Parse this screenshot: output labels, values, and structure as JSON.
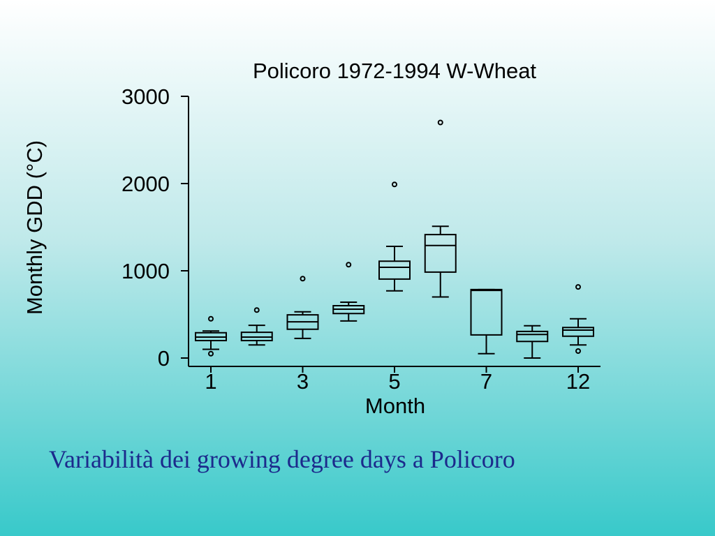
{
  "chart_data": {
    "type": "box",
    "title": "Policoro 1972-1994 W-Wheat",
    "x_label": "Month",
    "y_label": "Monthly GDD (°C)",
    "categories": [
      "1",
      null,
      "3",
      null,
      "5",
      null,
      "7",
      null,
      "12"
    ],
    "boxes": [
      {
        "min": 100,
        "q1": 200,
        "median": 240,
        "q3": 290,
        "max": 310,
        "outliers": [
          450,
          50
        ]
      },
      {
        "min": 150,
        "q1": 200,
        "median": 240,
        "q3": 295,
        "max": 375,
        "outliers": [
          550
        ]
      },
      {
        "min": 225,
        "q1": 330,
        "median": 415,
        "q3": 495,
        "max": 530,
        "outliers": [
          910
        ]
      },
      {
        "min": 425,
        "q1": 510,
        "median": 560,
        "q3": 600,
        "max": 640,
        "outliers": [
          1070
        ]
      },
      {
        "min": 770,
        "q1": 905,
        "median": 1040,
        "q3": 1110,
        "max": 1280,
        "outliers": [
          1990
        ]
      },
      {
        "min": 700,
        "q1": 985,
        "median": 1290,
        "q3": 1415,
        "max": 1510,
        "outliers": [
          2700
        ]
      },
      {
        "min": 50,
        "q1": 265,
        "median": 775,
        "q3": 785,
        "max": 785,
        "outliers": []
      },
      {
        "min": 0,
        "q1": 190,
        "median": 270,
        "q3": 305,
        "max": 370,
        "outliers": []
      },
      {
        "min": 150,
        "q1": 250,
        "median": 320,
        "q3": 350,
        "max": 450,
        "outliers": [
          815,
          80
        ]
      }
    ],
    "ylim": [
      -100,
      3000
    ],
    "yticks": [
      0,
      1000,
      2000,
      3000
    ]
  },
  "caption": "Variabilità dei growing degree days a Policoro"
}
